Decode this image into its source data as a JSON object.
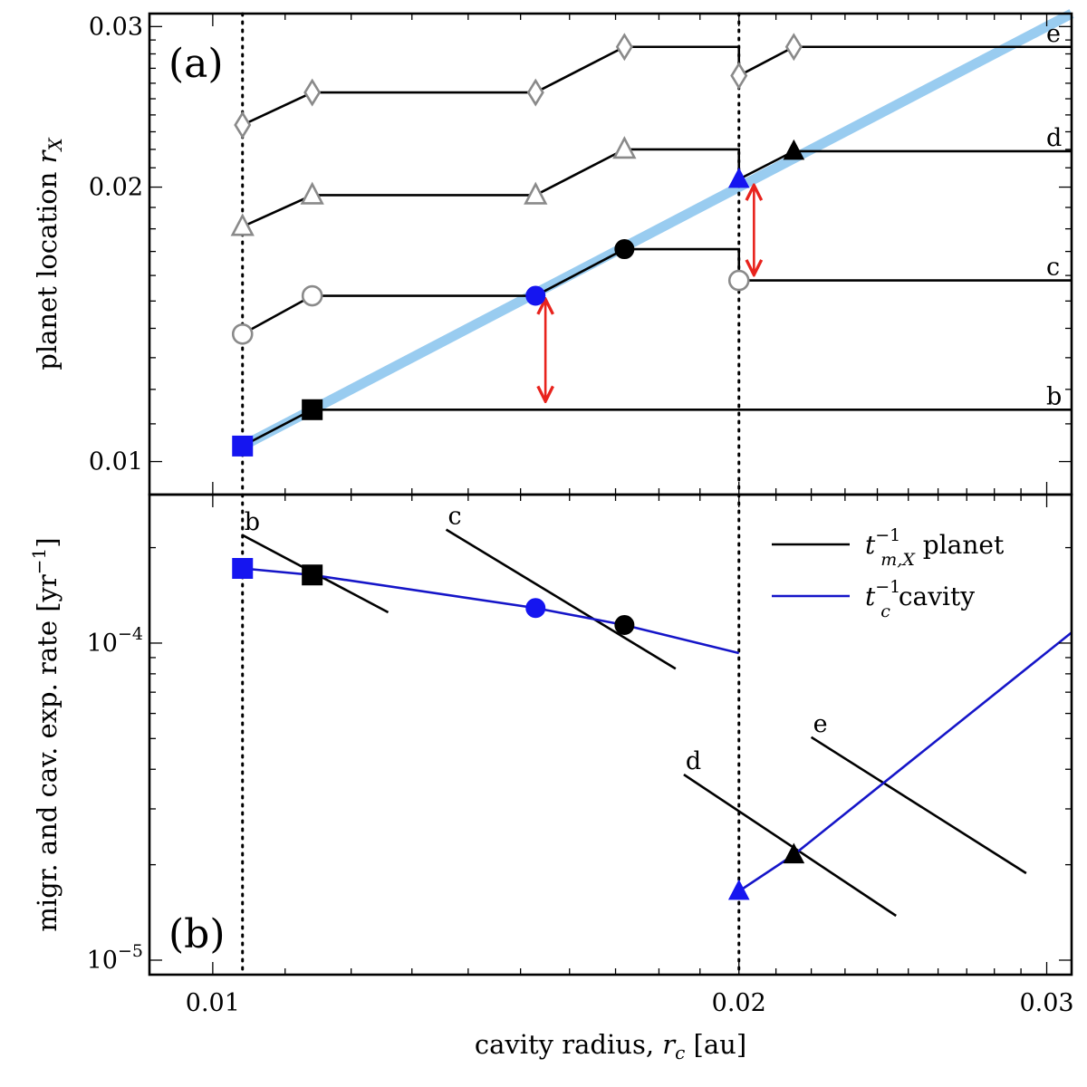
{
  "chart_data": [
    {
      "panel": "(a)",
      "type": "line",
      "scale": "log-log",
      "xlabel": "cavity radius, r_c [au]",
      "ylabel": "planet location r_X",
      "xlim": [
        0.0092,
        0.031
      ],
      "ylim": [
        0.0092,
        0.031
      ],
      "xticks": [
        "0.01",
        "0.02",
        "0.03"
      ],
      "yticks": [
        "0.01",
        "0.02",
        "0.03"
      ],
      "ytick_values": [
        0.01,
        0.02,
        0.03
      ],
      "vlines": [
        0.0104,
        0.02
      ],
      "reference_line": {
        "name": "r_X = r_c",
        "color": "#99ccf0",
        "x": [
          0.0104,
          0.031
        ]
      },
      "series": [
        {
          "name": "b",
          "label": "b",
          "segments": [
            [
              [
                0.0104,
                0.0104
              ],
              [
                0.0114,
                0.0114
              ],
              [
                0.031,
                0.0114
              ]
            ]
          ]
        },
        {
          "name": "c",
          "label": "c",
          "segments": [
            [
              [
                0.0104,
                0.0138
              ],
              [
                0.0114,
                0.0152
              ],
              [
                0.0153,
                0.0152
              ],
              [
                0.0172,
                0.0171
              ],
              [
                0.02,
                0.0171
              ],
              [
                0.02,
                0.0158
              ]
            ],
            [
              [
                0.02,
                0.0158
              ],
              [
                0.031,
                0.0158
              ]
            ]
          ]
        },
        {
          "name": "d",
          "label": "d",
          "segments": [
            [
              [
                0.0104,
                0.0181
              ],
              [
                0.0114,
                0.0196
              ],
              [
                0.0153,
                0.0196
              ],
              [
                0.0172,
                0.022
              ],
              [
                0.02,
                0.022
              ],
              [
                0.02,
                0.0204
              ],
              [
                0.0215,
                0.0219
              ],
              [
                0.031,
                0.0219
              ]
            ]
          ]
        },
        {
          "name": "e",
          "label": "e",
          "segments": [
            [
              [
                0.0104,
                0.0234
              ],
              [
                0.0114,
                0.0254
              ],
              [
                0.0153,
                0.0254
              ],
              [
                0.0172,
                0.0285
              ],
              [
                0.02,
                0.0285
              ],
              [
                0.02,
                0.0265
              ],
              [
                0.0215,
                0.0285
              ],
              [
                0.031,
                0.0285
              ]
            ]
          ]
        }
      ],
      "markers": [
        {
          "series": "b",
          "x": 0.0104,
          "y": 0.0104,
          "shape": "square",
          "style": "filled-blue"
        },
        {
          "series": "b",
          "x": 0.0114,
          "y": 0.0114,
          "shape": "square",
          "style": "filled-black"
        },
        {
          "series": "c",
          "x": 0.0104,
          "y": 0.0138,
          "shape": "circle",
          "style": "open-gray"
        },
        {
          "series": "c",
          "x": 0.0114,
          "y": 0.0152,
          "shape": "circle",
          "style": "open-gray"
        },
        {
          "series": "c",
          "x": 0.0153,
          "y": 0.0152,
          "shape": "circle",
          "style": "filled-blue"
        },
        {
          "series": "c",
          "x": 0.0172,
          "y": 0.0171,
          "shape": "circle",
          "style": "filled-black"
        },
        {
          "series": "c",
          "x": 0.02,
          "y": 0.0158,
          "shape": "circle",
          "style": "open-gray"
        },
        {
          "series": "d",
          "x": 0.0104,
          "y": 0.0181,
          "shape": "triangle",
          "style": "open-gray"
        },
        {
          "series": "d",
          "x": 0.0114,
          "y": 0.0196,
          "shape": "triangle",
          "style": "open-gray"
        },
        {
          "series": "d",
          "x": 0.0153,
          "y": 0.0196,
          "shape": "triangle",
          "style": "open-gray"
        },
        {
          "series": "d",
          "x": 0.0172,
          "y": 0.022,
          "shape": "triangle",
          "style": "open-gray"
        },
        {
          "series": "d",
          "x": 0.02,
          "y": 0.0204,
          "shape": "triangle",
          "style": "filled-blue"
        },
        {
          "series": "d",
          "x": 0.0215,
          "y": 0.0219,
          "shape": "triangle",
          "style": "filled-black"
        },
        {
          "series": "e",
          "x": 0.0104,
          "y": 0.0234,
          "shape": "diamond",
          "style": "open-gray"
        },
        {
          "series": "e",
          "x": 0.0114,
          "y": 0.0254,
          "shape": "diamond",
          "style": "open-gray"
        },
        {
          "series": "e",
          "x": 0.0153,
          "y": 0.0254,
          "shape": "diamond",
          "style": "open-gray"
        },
        {
          "series": "e",
          "x": 0.0172,
          "y": 0.0285,
          "shape": "diamond",
          "style": "open-gray"
        },
        {
          "series": "e",
          "x": 0.02,
          "y": 0.0265,
          "shape": "diamond",
          "style": "open-gray"
        },
        {
          "series": "e",
          "x": 0.0215,
          "y": 0.0285,
          "shape": "diamond",
          "style": "open-gray"
        }
      ],
      "arrows": [
        {
          "x": 0.0155,
          "y_from": 0.0117,
          "y_to": 0.015,
          "color": "#e8231d"
        },
        {
          "x": 0.0204,
          "y_from": 0.0161,
          "y_to": 0.02,
          "color": "#e8231d"
        }
      ]
    },
    {
      "panel": "(b)",
      "type": "line",
      "scale": "log-log",
      "xlabel": "cavity radius, r_c [au]",
      "ylabel": "migr. and cav. exp. rate [yr^-1]",
      "xlim": [
        0.0092,
        0.031
      ],
      "ylim": [
        9e-06,
        0.000294
      ],
      "xticks": [
        "0.01",
        "0.02",
        "0.03"
      ],
      "ytick_values": [
        1e-05,
        0.0001
      ],
      "ytick_labels": [
        {
          "base": "10",
          "exp": "−5"
        },
        {
          "base": "10",
          "exp": "−4"
        }
      ],
      "vlines": [
        0.0104,
        0.02
      ],
      "legend": [
        {
          "symbol": "t",
          "sub": "m,X",
          "sup": "−1",
          "text": "planet",
          "color": "#000000"
        },
        {
          "symbol": "t",
          "sub": "c",
          "sup": "−1",
          "text": "cavity",
          "color": "#1515c8"
        }
      ],
      "series": [
        {
          "name": "b planet migration rate",
          "label": "b",
          "color": "#000000",
          "points": [
            [
              0.0104,
              0.000219
            ],
            [
              0.0126,
              0.000125
            ]
          ]
        },
        {
          "name": "c planet migration rate",
          "label": "c",
          "color": "#000000",
          "points": [
            [
              0.0136,
              0.000228
            ],
            [
              0.0184,
              8.3e-05
            ]
          ]
        },
        {
          "name": "d planet migration rate",
          "label": "d",
          "color": "#000000",
          "points": [
            [
              0.0186,
              3.85e-05
            ],
            [
              0.0246,
              1.38e-05
            ]
          ]
        },
        {
          "name": "e planet migration rate",
          "label": "e",
          "color": "#000000",
          "points": [
            [
              0.022,
              5.05e-05
            ],
            [
              0.0292,
              1.88e-05
            ]
          ]
        },
        {
          "name": "cavity expansion rate (low)",
          "color": "#1515c8",
          "points": [
            [
              0.0104,
              0.000172
            ],
            [
              0.0114,
              0.000164
            ],
            [
              0.0153,
              0.000129
            ],
            [
              0.0172,
              0.000114
            ],
            [
              0.02,
              9.3e-05
            ]
          ]
        },
        {
          "name": "cavity expansion rate (high)",
          "color": "#1515c8",
          "points": [
            [
              0.02,
              1.65e-05
            ],
            [
              0.0215,
              2.15e-05
            ],
            [
              0.031,
              0.000108
            ]
          ]
        }
      ],
      "markers": [
        {
          "x": 0.0104,
          "y": 0.000172,
          "shape": "square",
          "style": "filled-blue"
        },
        {
          "x": 0.0114,
          "y": 0.000164,
          "shape": "square",
          "style": "filled-black"
        },
        {
          "x": 0.0153,
          "y": 0.000129,
          "shape": "circle",
          "style": "filled-blue"
        },
        {
          "x": 0.0172,
          "y": 0.000114,
          "shape": "circle",
          "style": "filled-black"
        },
        {
          "x": 0.02,
          "y": 1.65e-05,
          "shape": "triangle",
          "style": "filled-blue"
        },
        {
          "x": 0.0215,
          "y": 2.15e-05,
          "shape": "triangle",
          "style": "filled-black"
        }
      ]
    }
  ]
}
